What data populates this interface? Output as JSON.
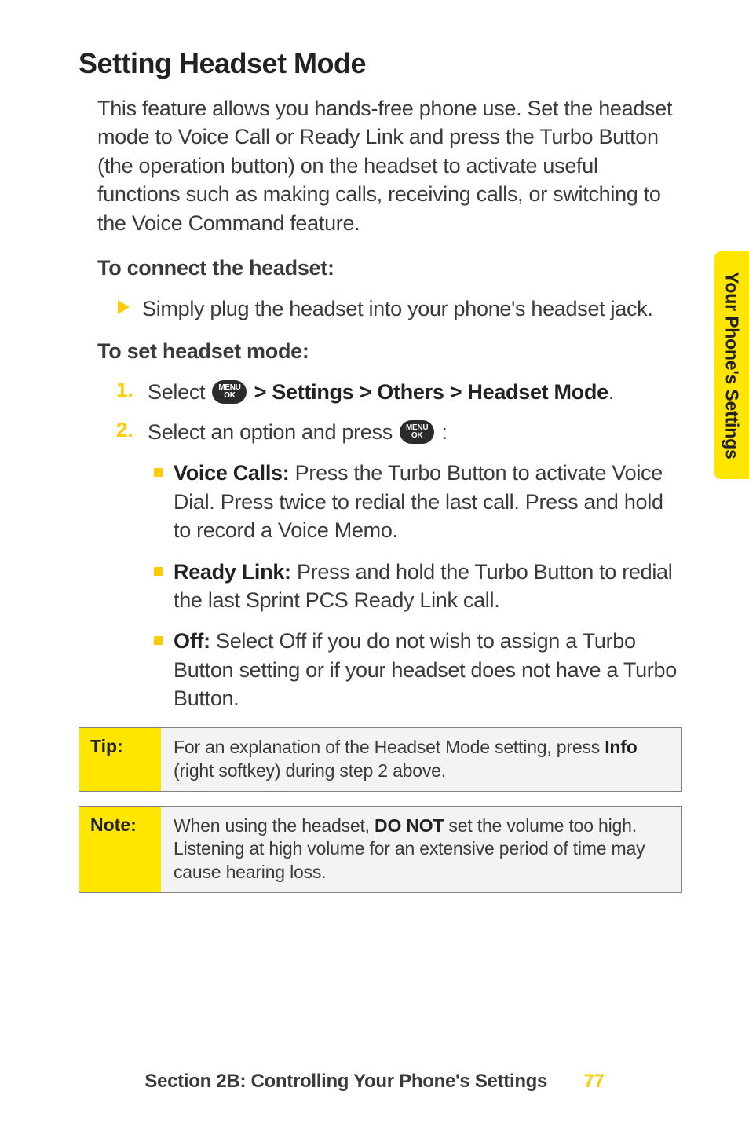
{
  "heading": "Setting Headset Mode",
  "intro": "This feature allows you hands-free phone use. Set the headset mode to Voice Call or Ready Link and press the Turbo Button (the operation button) on the headset to activate useful functions such as making calls, receiving calls, or switching to the Voice Command feature.",
  "sub1": "To connect the headset:",
  "bullet1": "Simply plug the headset into your phone's headset jack.",
  "sub2": "To set headset mode:",
  "step1_pre": "Select ",
  "step1_post": " > Settings > Others > Headset Mode",
  "step1_end": ".",
  "step2_pre": "Select an option and press ",
  "step2_end": " :",
  "menu_top": "MENU",
  "menu_bot": "OK",
  "opts": [
    {
      "bold": "Voice Calls:",
      "text": " Press the Turbo Button to activate Voice Dial. Press twice to redial the last call. Press and hold to record a Voice Memo."
    },
    {
      "bold": "Ready Link:",
      "text": " Press and hold the Turbo Button to redial the last Sprint PCS Ready Link call."
    },
    {
      "bold": "Off:",
      "text": " Select Off if you do not wish to assign a Turbo Button setting or if your headset does not have a Turbo Button."
    }
  ],
  "tip_label": "Tip:",
  "tip_pre": "For an explanation of the Headset Mode setting, press ",
  "tip_bold": "Info",
  "tip_post": " (right softkey) during step 2 above.",
  "note_label": "Note:",
  "note_pre": "When using the headset, ",
  "note_bold": "DO NOT",
  "note_post": " set the volume too high. Listening at high volume for an extensive period of time may cause hearing loss.",
  "side": "Your Phone's Settings",
  "footer": "Section 2B: Controlling Your Phone's Settings",
  "page_num": "77",
  "colors": {
    "accent": "#ffcc00",
    "tab": "#ffe600",
    "text": "#3a3a3a",
    "dark": "#222"
  }
}
